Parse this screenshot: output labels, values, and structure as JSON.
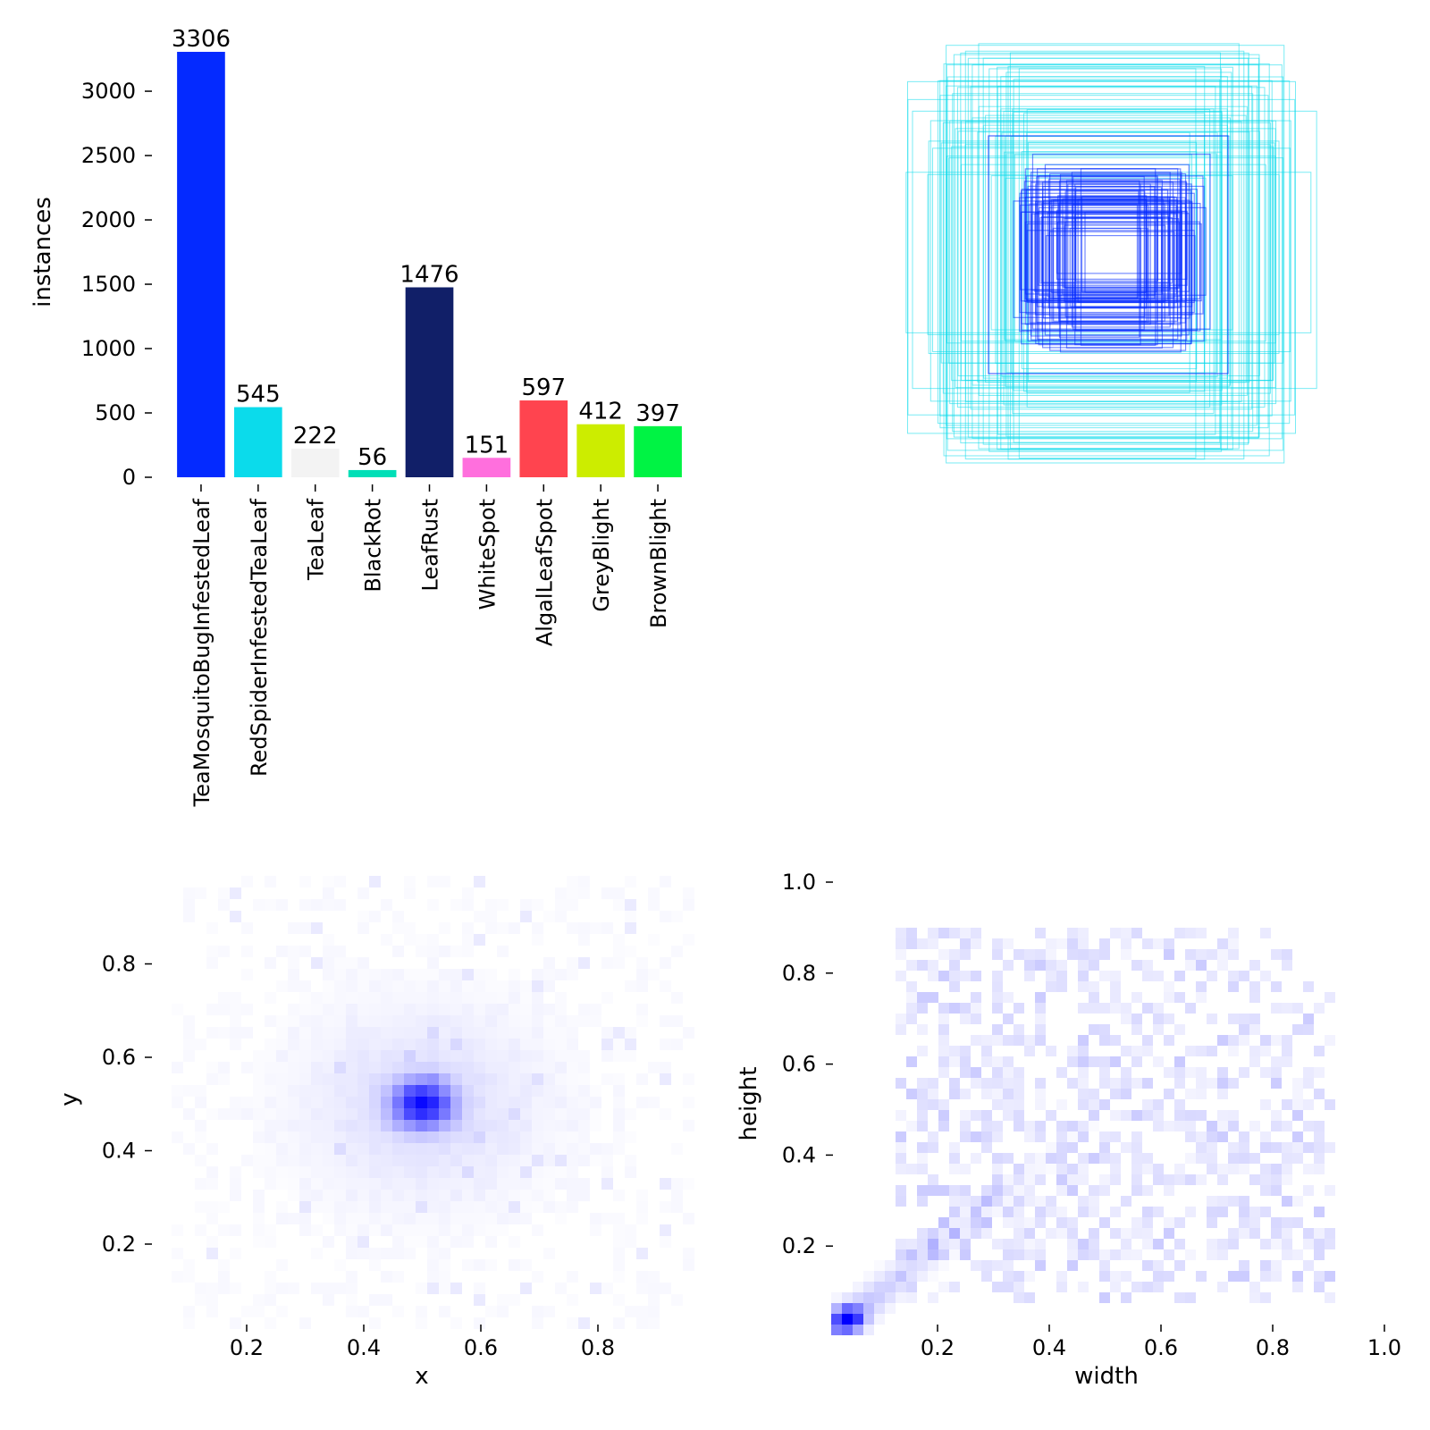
{
  "chart_data": [
    {
      "type": "bar",
      "panel": "top-left",
      "ylabel": "instances",
      "ylim": [
        0,
        3306
      ],
      "yticks": [
        0,
        500,
        1000,
        1500,
        2000,
        2500,
        3000
      ],
      "categories": [
        "TeaMosquitoBugInfestedLeaf",
        "RedSpiderInfestedTeaLeaf",
        "TeaLeaf",
        "BlackRot",
        "LeafRust",
        "WhiteSpot",
        "AlgalLeafSpot",
        "GreyBlight",
        "BrownBlight"
      ],
      "values": [
        3306,
        545,
        222,
        56,
        1476,
        151,
        597,
        412,
        397
      ],
      "colors": [
        "#042aff",
        "#0bdbeb",
        "#f3f3f3",
        "#00dfb7",
        "#111f68",
        "#ff6fdd",
        "#ff444f",
        "#cced00",
        "#00f344"
      ],
      "data_labels": [
        "3306",
        "545",
        "222",
        "56",
        "1476",
        "151",
        "597",
        "412",
        "397"
      ]
    },
    {
      "type": "other",
      "panel": "top-right",
      "description_of_marks": "overlaid centered box outlines",
      "colors": [
        "#0bdbeb",
        "#042aff"
      ]
    },
    {
      "type": "heatmap",
      "panel": "bottom-left",
      "xlabel": "x",
      "ylabel": "y",
      "xlim": [
        0.07,
        0.97
      ],
      "ylim": [
        0.02,
        0.96
      ],
      "xticks": [
        "0.2",
        "0.4",
        "0.6",
        "0.8"
      ],
      "yticks": [
        "0.2",
        "0.4",
        "0.6",
        "0.8"
      ],
      "color": "#0000ff",
      "peak": [
        0.5,
        0.5
      ]
    },
    {
      "type": "heatmap",
      "panel": "bottom-right",
      "xlabel": "width",
      "ylabel": "height",
      "xlim": [
        0.0,
        1.0
      ],
      "ylim": [
        0.0,
        1.0
      ],
      "xticks": [
        "0.2",
        "0.4",
        "0.6",
        "0.8",
        "1.0"
      ],
      "yticks": [
        "0.2",
        "0.4",
        "0.6",
        "0.8",
        "1.0"
      ],
      "color": "#0000ff",
      "peak": [
        0.04,
        0.04
      ]
    }
  ]
}
